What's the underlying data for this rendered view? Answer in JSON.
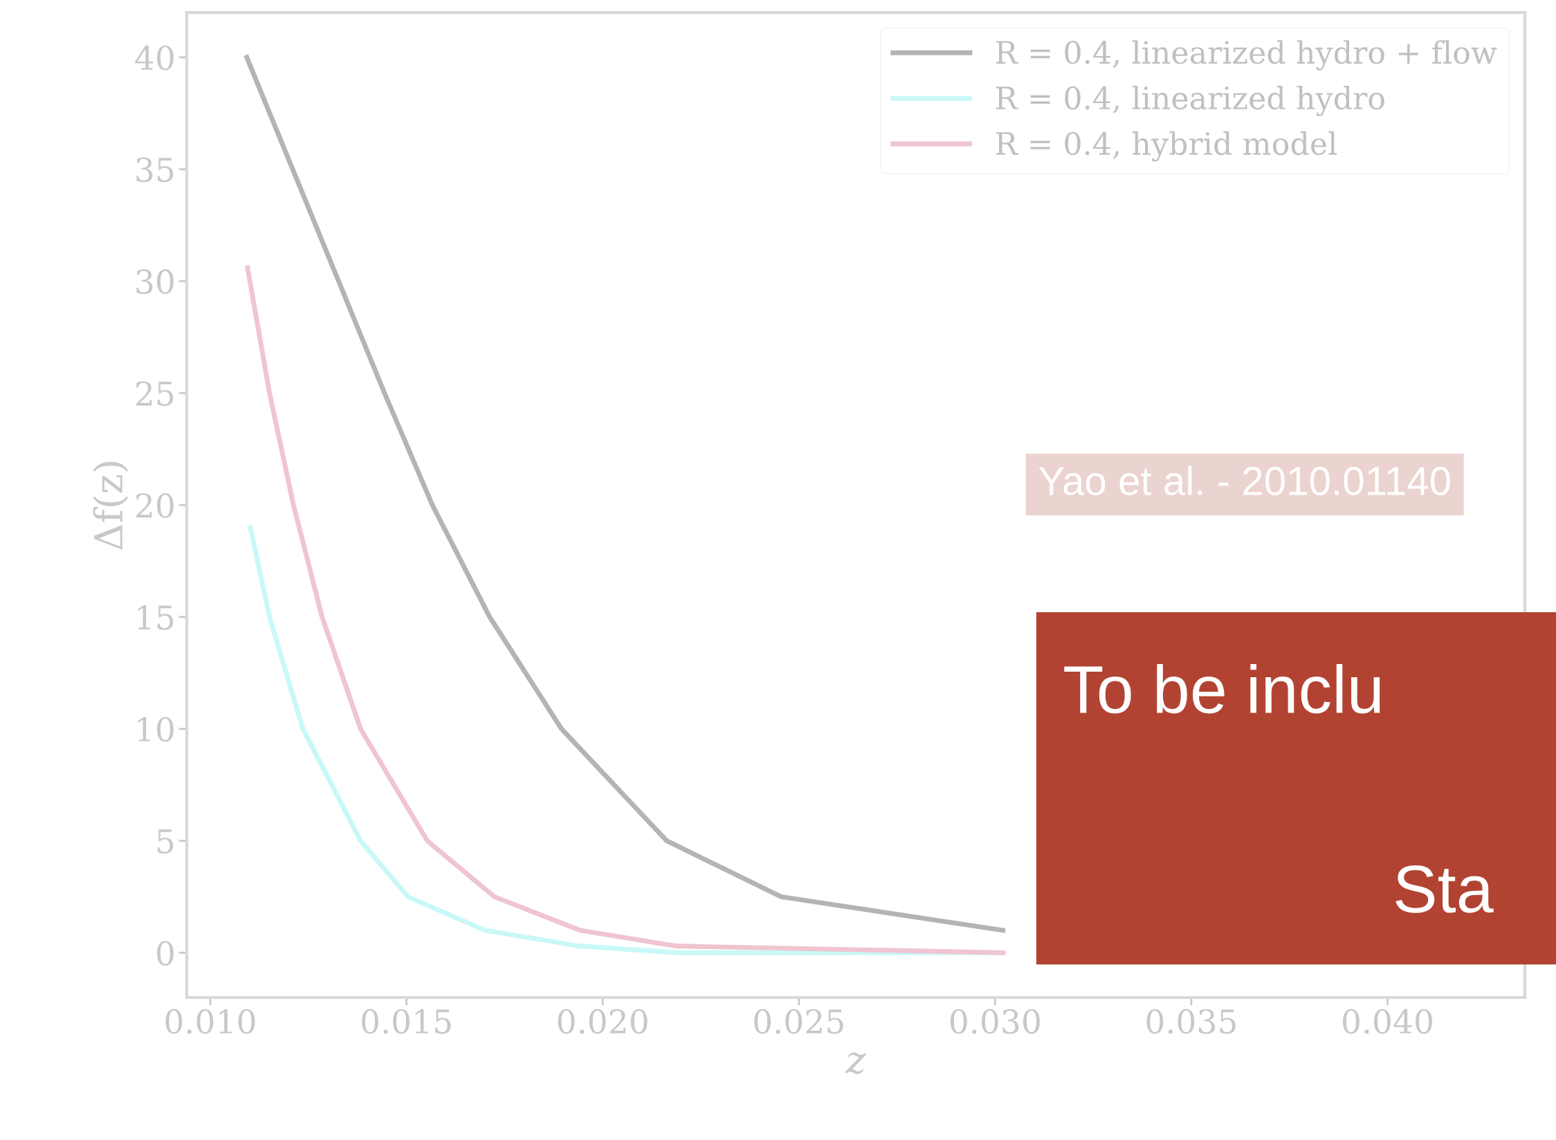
{
  "chart_data": {
    "type": "line",
    "xlabel": "z",
    "ylabel": "Δf(z)",
    "xlim": [
      0.0094,
      0.0435
    ],
    "ylim": [
      -2,
      42
    ],
    "xticks": [
      {
        "value": 0.01,
        "label": "0.010"
      },
      {
        "value": 0.015,
        "label": "0.015"
      },
      {
        "value": 0.02,
        "label": "0.020"
      },
      {
        "value": 0.025,
        "label": "0.025"
      },
      {
        "value": 0.03,
        "label": "0.030"
      },
      {
        "value": 0.035,
        "label": "0.035"
      },
      {
        "value": 0.04,
        "label": "0.040"
      }
    ],
    "yticks": [
      0,
      5,
      10,
      15,
      20,
      25,
      30,
      35,
      40
    ],
    "grid": false,
    "legend": "top right",
    "marker": "none",
    "line_style": "solid",
    "series": [
      {
        "name": "R = 0.4, linearized hydro + flow",
        "color": "#b4b4b4",
        "x": [
          0.01093,
          0.01444,
          0.01566,
          0.01712,
          0.01895,
          0.02163,
          0.02455,
          0.0302
        ],
        "values": [
          40,
          25,
          20,
          15,
          10,
          5,
          2.5,
          1
        ]
      },
      {
        "name": "R = 0.4, linearized hydro",
        "color": "#c8f8f8",
        "x": [
          0.01102,
          0.01151,
          0.01236,
          0.01383,
          0.01504,
          0.017,
          0.0194,
          0.0219,
          0.0302
        ],
        "values": [
          19,
          15,
          10,
          5,
          2.5,
          1,
          0.3,
          0,
          0
        ]
      },
      {
        "name": "R = 0.4, hybrid model",
        "color": "#f0c4d0",
        "x": [
          0.01095,
          0.01151,
          0.01212,
          0.01285,
          0.01383,
          0.01553,
          0.01724,
          0.01943,
          0.02187,
          0.0302
        ],
        "values": [
          30.6,
          25,
          20,
          15,
          10,
          5,
          2.5,
          1,
          0.3,
          0
        ]
      }
    ],
    "annotations": [
      "Yao et al. - 2010.01140",
      "To be inclu",
      "Sta"
    ]
  }
}
